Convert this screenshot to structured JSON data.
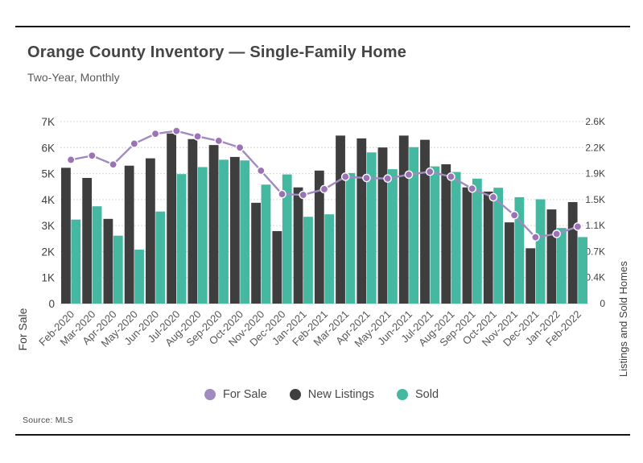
{
  "header": {
    "title": "Orange County Inventory — Single-Family Home",
    "subtitle": "Two-Year, Monthly"
  },
  "chart_data": {
    "type": "combo",
    "categories": [
      "Feb-2020",
      "Mar-2020",
      "Apr-2020",
      "May-2020",
      "Jun-2020",
      "Jul-2020",
      "Aug-2020",
      "Sep-2020",
      "Oct-2020",
      "Nov-2020",
      "Dec-2020",
      "Jan-2021",
      "Feb-2021",
      "Mar-2021",
      "Apr-2021",
      "May-2021",
      "Jun-2021",
      "Jul-2021",
      "Aug-2021",
      "Sep-2021",
      "Oct-2021",
      "Nov-2021",
      "Dec-2021",
      "Jan-2022",
      "Feb-2022"
    ],
    "series": [
      {
        "name": "For Sale",
        "type": "line",
        "axis": "left",
        "color": "#a18ac2",
        "marker_color": "#9a72b5",
        "values": [
          5530,
          5690,
          5350,
          6150,
          6530,
          6640,
          6430,
          6260,
          6000,
          5110,
          4210,
          4180,
          4400,
          4880,
          4830,
          4810,
          4960,
          5070,
          4880,
          4420,
          4090,
          3400,
          2550,
          2680,
          2960
        ]
      },
      {
        "name": "New Listings",
        "type": "bar",
        "axis": "right",
        "color": "#3e3e3e",
        "values": [
          1940,
          1795,
          1210,
          1970,
          2075,
          2430,
          2350,
          2265,
          2095,
          1440,
          1035,
          1660,
          1900,
          2400,
          2360,
          2230,
          2400,
          2340,
          1990,
          1660,
          1600,
          1160,
          790,
          1345,
          1450
        ]
      },
      {
        "name": "Sold",
        "type": "bar",
        "axis": "right",
        "color": "#45b8a1",
        "values": [
          1200,
          1390,
          970,
          770,
          1315,
          1850,
          1950,
          2055,
          2045,
          1700,
          1845,
          1240,
          1275,
          1865,
          2160,
          1920,
          2235,
          1960,
          1880,
          1785,
          1655,
          1520,
          1490,
          1080,
          950
        ]
      }
    ],
    "left_axis": {
      "label": "For Sale",
      "min": 0,
      "max": 7000,
      "ticks": [
        "0",
        "1K",
        "2K",
        "3K",
        "4K",
        "5K",
        "6K",
        "7K"
      ]
    },
    "right_axis": {
      "label": "New Listings and Sold Homes",
      "min": 0,
      "max": 2600,
      "ticks": [
        "0",
        "0.4K",
        "0.7K",
        "1.1K",
        "1.5K",
        "1.9K",
        "2.2K",
        "2.6K"
      ]
    },
    "grid": true,
    "legend_position": "bottom"
  },
  "legend": {
    "items": [
      {
        "label": "For Sale",
        "color": "#a18ac2"
      },
      {
        "label": "New Listings",
        "color": "#3e3e3e"
      },
      {
        "label": "Sold",
        "color": "#45b8a1"
      }
    ]
  },
  "footer": {
    "source": "Source:  MLS"
  }
}
